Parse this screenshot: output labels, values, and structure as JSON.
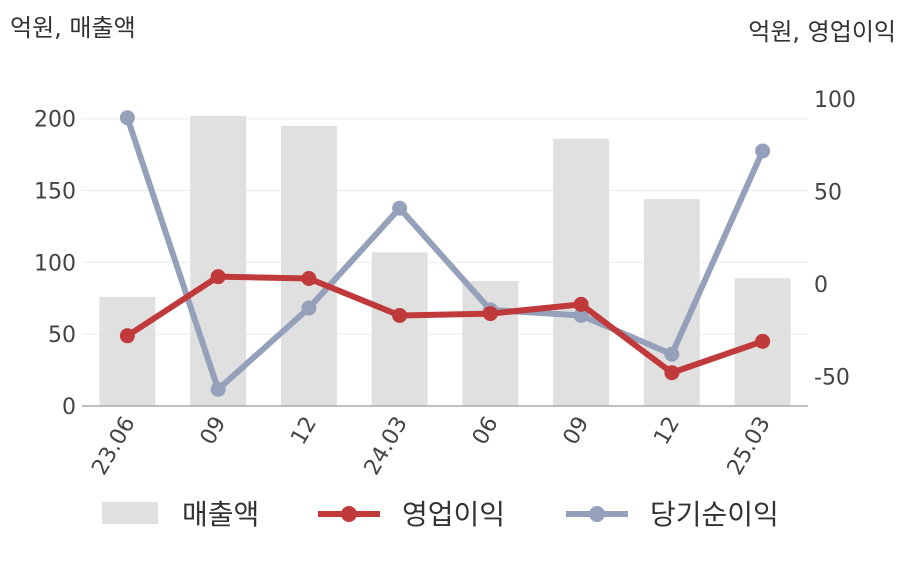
{
  "chart_data": {
    "type": "bar+line",
    "left_unit_label": "억원, 매출액",
    "right_unit_label": "억원, 영업이익",
    "categories": [
      "23.06",
      "09",
      "12",
      "24.03",
      "06",
      "09",
      "12",
      "25.03"
    ],
    "y_left": {
      "ylim": [
        0,
        220
      ],
      "ticks": [
        0,
        50,
        100,
        150,
        200
      ]
    },
    "y_right": {
      "ylim": [
        -66,
        105
      ],
      "ticks": [
        -50,
        0,
        50,
        100
      ]
    },
    "series": [
      {
        "name": "매출액",
        "type": "bar",
        "axis": "left",
        "color": "#e0e0e0",
        "values": [
          76,
          202,
          195,
          107,
          87,
          186,
          144,
          89
        ]
      },
      {
        "name": "영업이익",
        "type": "line",
        "axis": "right",
        "color": "#c0393b",
        "values": [
          -28,
          4,
          3,
          -17,
          -16,
          -11,
          -48,
          -31
        ]
      },
      {
        "name": "당기순이익",
        "type": "line",
        "axis": "right",
        "color": "#95a0ba",
        "values": [
          90,
          -57,
          -13,
          41,
          -14,
          -17,
          -38,
          72
        ]
      }
    ],
    "grid": true,
    "legend_position": "bottom"
  }
}
